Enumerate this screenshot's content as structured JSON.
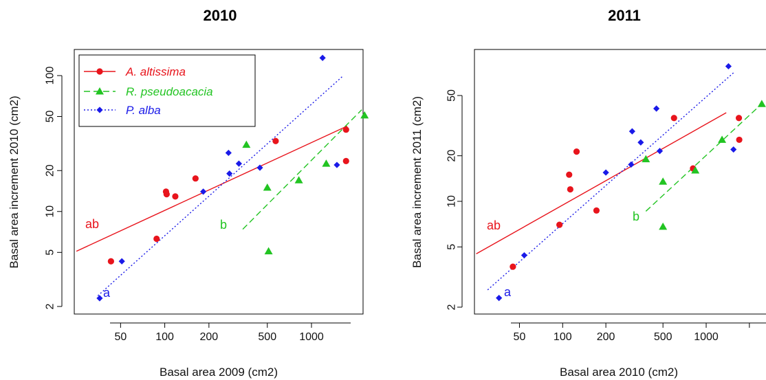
{
  "chart_data": [
    {
      "type": "scatter",
      "title": "2010",
      "xlabel": "Basal area 2009 (cm2)",
      "ylabel": "Basal area increment 2010 (cm2)",
      "xscale": "log",
      "yscale": "log",
      "xlim": [
        30,
        2700
      ],
      "ylim": [
        1.9,
        150
      ],
      "xticks": [
        50,
        100,
        200,
        500,
        1000
      ],
      "xtick_labels": [
        "50",
        "100",
        "200",
        "500",
        "1000"
      ],
      "yticks": [
        2,
        5,
        10,
        20,
        50,
        100
      ],
      "ytick_labels": [
        "2",
        "5",
        "10",
        "20",
        "50",
        "100"
      ],
      "legend": {
        "placement": "top-left"
      },
      "series": [
        {
          "name": "A. altissima",
          "color": "#e8141c",
          "marker": "circle",
          "line_style": "solid",
          "x": [
            43,
            88,
            102,
            103,
            118,
            162,
            570,
            1720,
            1720
          ],
          "y": [
            4.3,
            6.3,
            14,
            13.4,
            12.9,
            17.5,
            33,
            40,
            23.5
          ],
          "fit": {
            "x": [
              25,
              1750
            ],
            "y": [
              5.1,
              42.5
            ]
          },
          "group_label": "ab"
        },
        {
          "name": "R. pseudoacacia",
          "color": "#22c422",
          "marker": "triangle",
          "line_style": "dashed",
          "x": [
            360,
            500,
            510,
            820,
            1260,
            2300
          ],
          "y": [
            31,
            15,
            5.1,
            17,
            22.5,
            51
          ],
          "fit": {
            "x": [
              340,
              2200
            ],
            "y": [
              7.4,
              56
            ]
          },
          "group_label": "b"
        },
        {
          "name": "P. alba",
          "color": "#1a1ae8",
          "marker": "diamond",
          "line_style": "dotted",
          "x": [
            36,
            51,
            183,
            272,
            276,
            320,
            445,
            1190,
            1490
          ],
          "y": [
            2.3,
            4.3,
            14,
            27,
            19,
            22.5,
            21,
            135,
            22
          ],
          "fit": {
            "x": [
              35,
              1650
            ],
            "y": [
              2.4,
              100
            ]
          },
          "group_label": "a"
        }
      ]
    },
    {
      "type": "scatter",
      "title": "2011",
      "xlabel": "Basal area 2010 (cm2)",
      "ylabel": "Basal area increment 2011 (cm2)",
      "xscale": "log",
      "yscale": "log",
      "xlim": [
        30,
        2700
      ],
      "ylim": [
        1.9,
        95
      ],
      "xticks": [
        50,
        100,
        200,
        500,
        1000
      ],
      "xtick_labels": [
        "50",
        "100",
        "200",
        "500",
        "1000"
      ],
      "yticks": [
        2,
        5,
        10,
        20,
        50
      ],
      "ytick_labels": [
        "2",
        "5",
        "10",
        "20",
        "50"
      ],
      "series": [
        {
          "name": "A. altissima",
          "color": "#e8141c",
          "marker": "circle",
          "line_style": "solid",
          "x": [
            45,
            95,
            111,
            113,
            125,
            172,
            597,
            810,
            1690,
            1700
          ],
          "y": [
            3.7,
            7,
            15,
            12,
            21.3,
            8.7,
            35.5,
            16.5,
            35.5,
            25.5
          ],
          "fit": {
            "x": [
              25,
              1380
            ],
            "y": [
              4.5,
              38.5
            ]
          },
          "group_label": "ab"
        },
        {
          "name": "R. pseudoacacia",
          "color": "#22c422",
          "marker": "triangle",
          "line_style": "dashed",
          "x": [
            380,
            500,
            500,
            840,
            1290,
            2440
          ],
          "y": [
            19,
            13.5,
            6.8,
            16,
            25.5,
            44
          ],
          "fit": {
            "x": [
              380,
              2500
            ],
            "y": [
              8.6,
              45
            ]
          },
          "group_label": "b"
        },
        {
          "name": "P. alba",
          "color": "#1a1ae8",
          "marker": "diamond",
          "line_style": "dotted",
          "x": [
            36,
            54,
            200,
            300,
            305,
            350,
            450,
            475,
            1430,
            1550
          ],
          "y": [
            2.3,
            4.4,
            15.5,
            17.5,
            29,
            24.5,
            41,
            21.5,
            78,
            22
          ],
          "fit": {
            "x": [
              30,
              1560
            ],
            "y": [
              2.6,
              71
            ]
          },
          "group_label": "a"
        }
      ]
    }
  ]
}
